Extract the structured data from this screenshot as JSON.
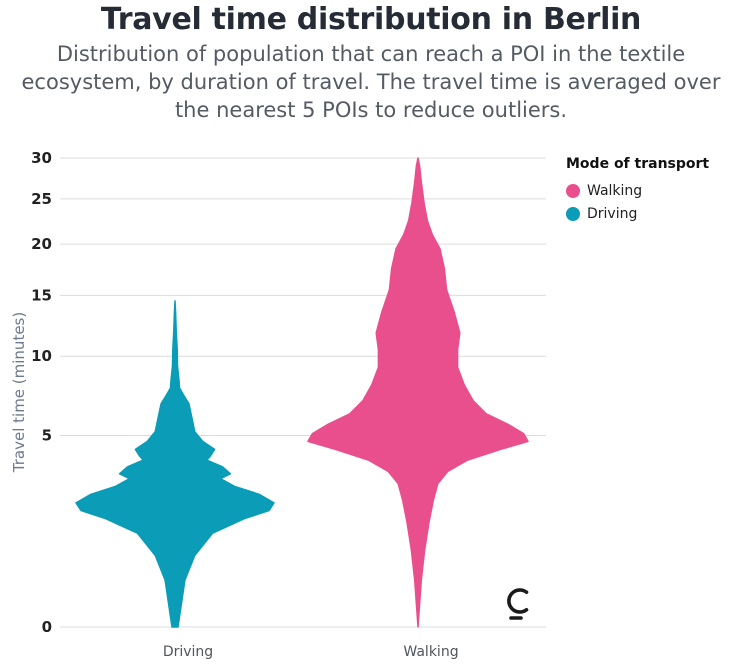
{
  "header": {
    "title": "Travel time distribution in Berlin",
    "subtitle": "Distribution of population that can reach a POI in the textile ecosystem, by duration of travel. The travel time is averaged over the nearest 5 POIs to reduce outliers."
  },
  "legend": {
    "title": "Mode of transport",
    "items": [
      {
        "label": "Walking",
        "color": "#e94f8d"
      },
      {
        "label": "Driving",
        "color": "#0b9cb7"
      }
    ]
  },
  "logo": {
    "icon": "c-logo-icon"
  },
  "chart_data": {
    "type": "violin",
    "title": "Travel time distribution in Berlin",
    "ylabel": "Travel time (minutes)",
    "xlabel": "",
    "yscale": "sqrt",
    "ylim": [
      0,
      30
    ],
    "yticks": [
      0,
      5,
      10,
      15,
      20,
      25,
      30
    ],
    "grid": true,
    "legend_position": "top-right",
    "categories": [
      "Driving",
      "Walking"
    ],
    "series": [
      {
        "name": "Driving",
        "color": "#0b9cb7",
        "density": [
          {
            "y": 0.0,
            "w": 0.03
          },
          {
            "y": 0.3,
            "w": 0.1
          },
          {
            "y": 0.7,
            "w": 0.2
          },
          {
            "y": 1.2,
            "w": 0.38
          },
          {
            "y": 1.6,
            "w": 0.7
          },
          {
            "y": 1.85,
            "w": 0.95
          },
          {
            "y": 2.1,
            "w": 1.0
          },
          {
            "y": 2.4,
            "w": 0.85
          },
          {
            "y": 2.7,
            "w": 0.6
          },
          {
            "y": 3.0,
            "w": 0.46
          },
          {
            "y": 3.2,
            "w": 0.56
          },
          {
            "y": 3.5,
            "w": 0.48
          },
          {
            "y": 3.8,
            "w": 0.32
          },
          {
            "y": 4.0,
            "w": 0.36
          },
          {
            "y": 4.3,
            "w": 0.4
          },
          {
            "y": 4.7,
            "w": 0.28
          },
          {
            "y": 5.2,
            "w": 0.2
          },
          {
            "y": 6.0,
            "w": 0.17
          },
          {
            "y": 6.8,
            "w": 0.14
          },
          {
            "y": 7.3,
            "w": 0.09
          },
          {
            "y": 7.8,
            "w": 0.045
          },
          {
            "y": 8.3,
            "w": 0.04
          },
          {
            "y": 9.3,
            "w": 0.025
          },
          {
            "y": 10.5,
            "w": 0.022
          },
          {
            "y": 12.0,
            "w": 0.012
          },
          {
            "y": 13.5,
            "w": 0.006
          },
          {
            "y": 14.5,
            "w": 0.0
          }
        ]
      },
      {
        "name": "Walking",
        "color": "#e94f8d",
        "density": [
          {
            "y": 0.0,
            "w": 0.0
          },
          {
            "y": 0.3,
            "w": 0.03
          },
          {
            "y": 0.8,
            "w": 0.06
          },
          {
            "y": 1.5,
            "w": 0.1
          },
          {
            "y": 2.2,
            "w": 0.14
          },
          {
            "y": 2.8,
            "w": 0.18
          },
          {
            "y": 3.3,
            "w": 0.27
          },
          {
            "y": 3.8,
            "w": 0.45
          },
          {
            "y": 4.3,
            "w": 0.75
          },
          {
            "y": 4.7,
            "w": 1.0
          },
          {
            "y": 5.1,
            "w": 0.96
          },
          {
            "y": 5.6,
            "w": 0.82
          },
          {
            "y": 6.2,
            "w": 0.62
          },
          {
            "y": 7.0,
            "w": 0.5
          },
          {
            "y": 8.0,
            "w": 0.42
          },
          {
            "y": 9.2,
            "w": 0.36
          },
          {
            "y": 10.5,
            "w": 0.36
          },
          {
            "y": 11.8,
            "w": 0.38
          },
          {
            "y": 13.5,
            "w": 0.33
          },
          {
            "y": 15.5,
            "w": 0.26
          },
          {
            "y": 17.5,
            "w": 0.24
          },
          {
            "y": 19.5,
            "w": 0.2
          },
          {
            "y": 21.0,
            "w": 0.13
          },
          {
            "y": 22.5,
            "w": 0.085
          },
          {
            "y": 24.5,
            "w": 0.055
          },
          {
            "y": 27.0,
            "w": 0.03
          },
          {
            "y": 29.0,
            "w": 0.015
          },
          {
            "y": 30.0,
            "w": 0.0
          }
        ]
      }
    ]
  }
}
